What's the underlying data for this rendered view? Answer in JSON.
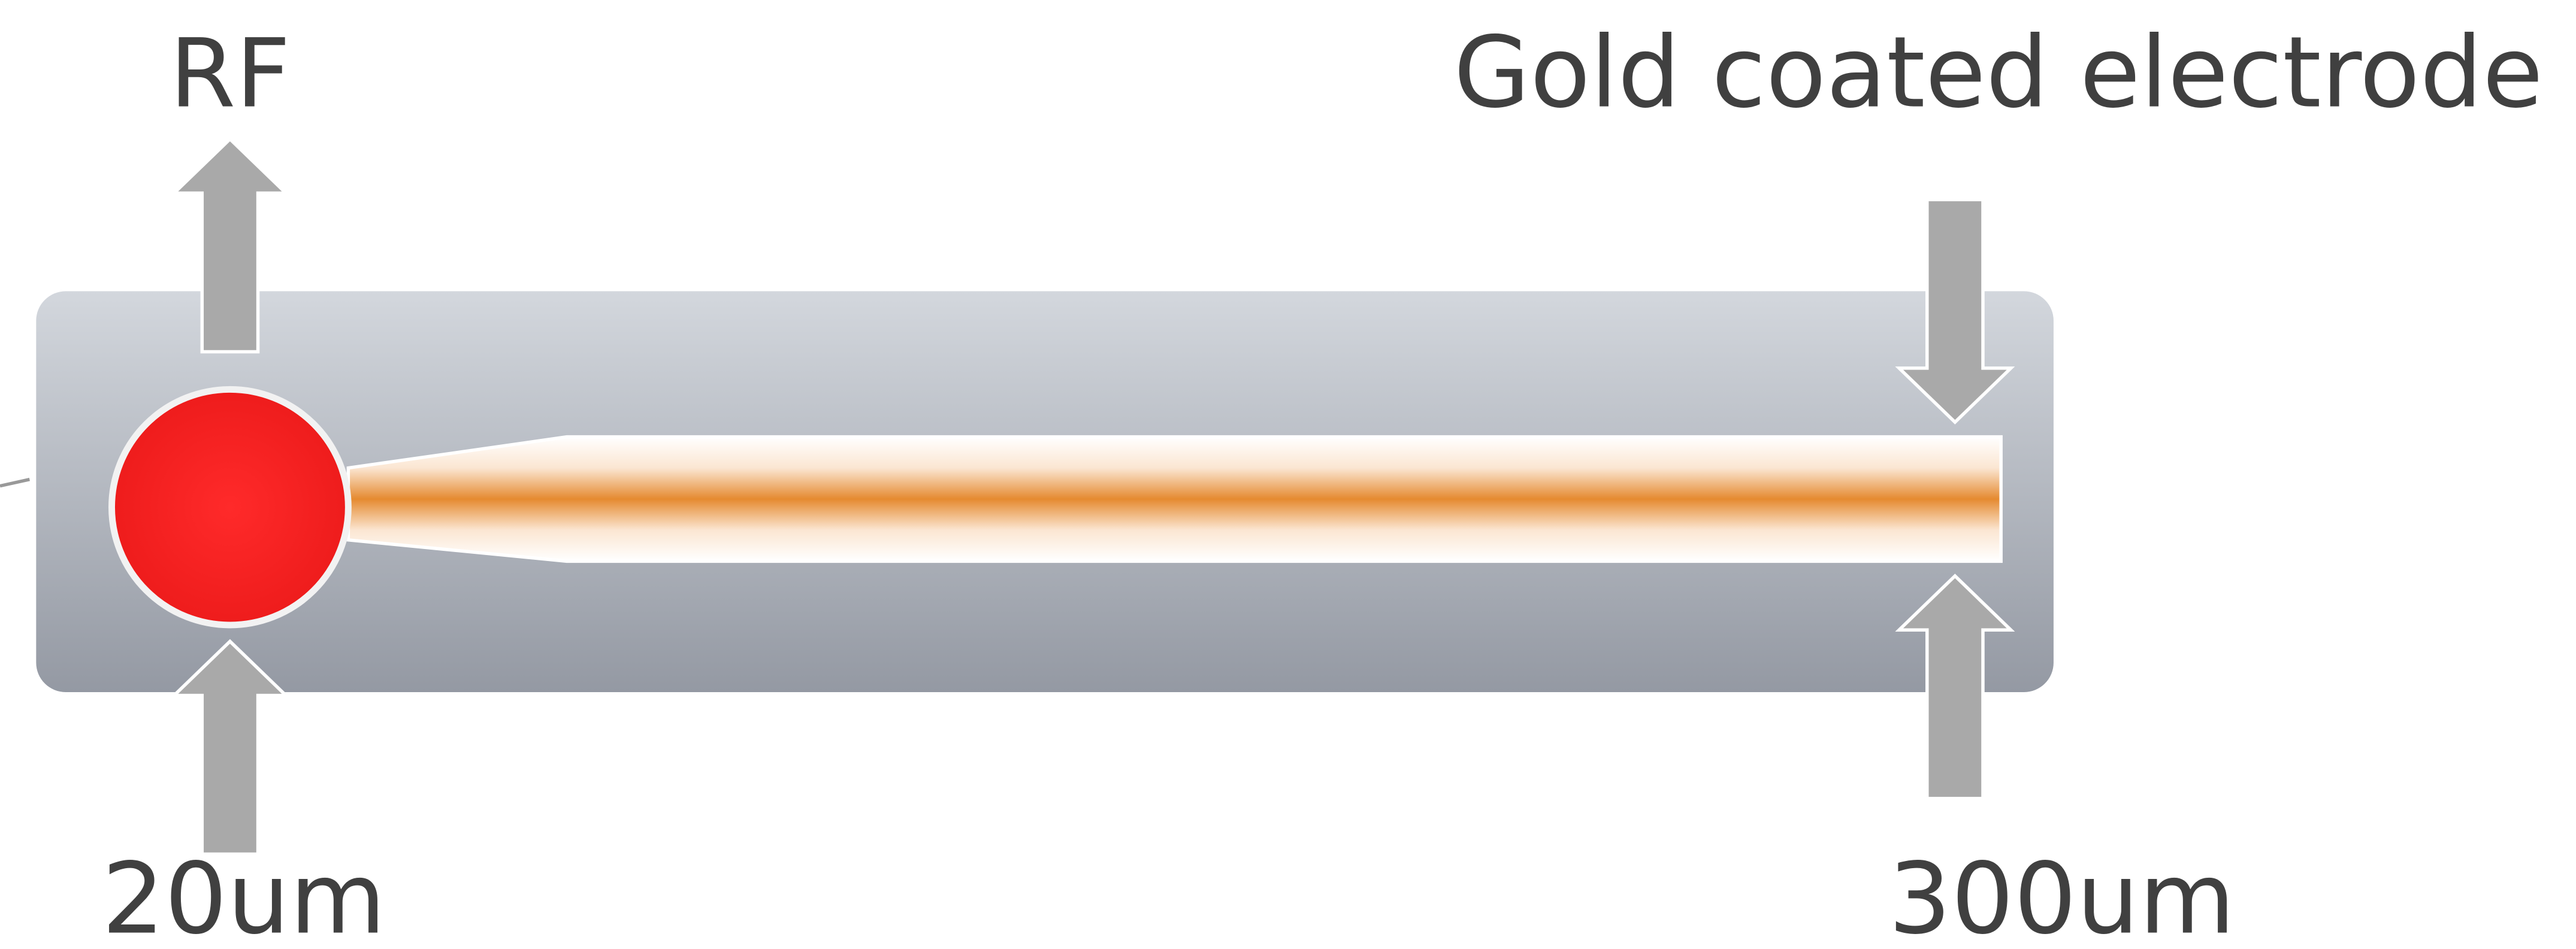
{
  "labels": {
    "top_left": "RF",
    "top_right": "Gold coated electrode",
    "bottom_left": "20um",
    "bottom_right": "300um"
  }
}
